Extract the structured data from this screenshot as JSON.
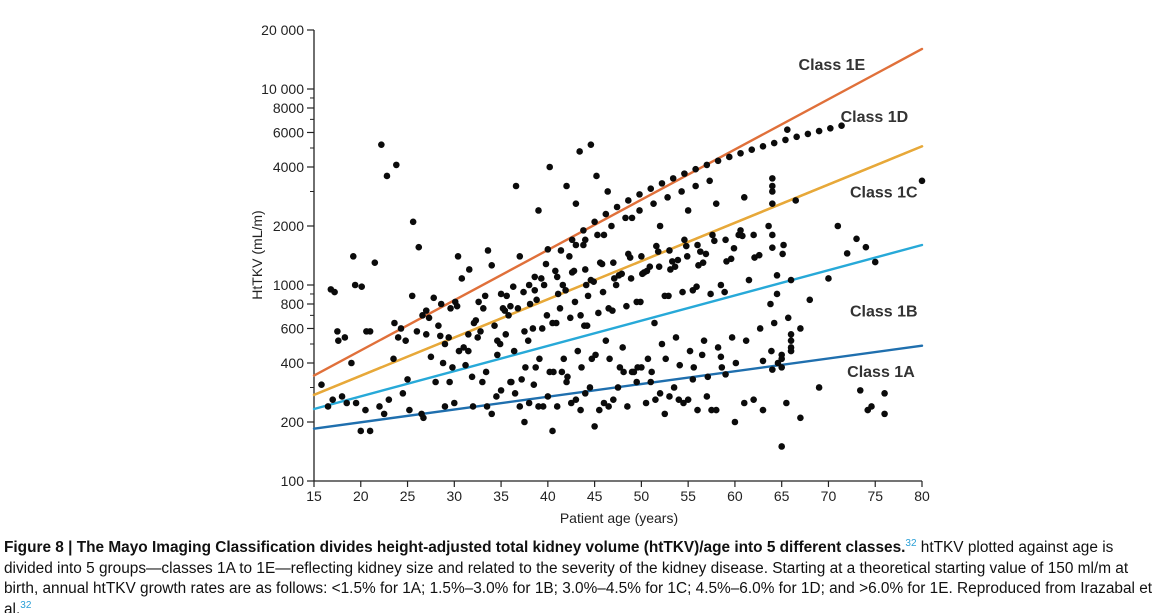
{
  "chart_data": {
    "type": "scatter",
    "title": "",
    "xlabel": "Patient age (years)",
    "ylabel": "HtTKV (mL/m)",
    "xlim": [
      15,
      80
    ],
    "ylim": [
      100,
      20000
    ],
    "yscale": "log",
    "grid": false,
    "xticks": [
      15,
      20,
      25,
      30,
      35,
      40,
      45,
      50,
      55,
      60,
      65,
      70,
      75,
      80
    ],
    "xtick_labels": [
      "15",
      "20",
      "25",
      "30",
      "35",
      "40",
      "45",
      "50",
      "55",
      "60",
      "65",
      "70",
      "75",
      "80"
    ],
    "yticks_major": [
      100,
      200,
      400,
      600,
      800,
      1000,
      2000,
      4000,
      6000,
      8000,
      10000,
      20000
    ],
    "ytick_labels": [
      "100",
      "200",
      "400",
      "600",
      "800",
      "1000",
      "2000",
      "4000",
      "6000",
      "8000",
      "10 000",
      "20 000"
    ],
    "yticks_minor": [
      300,
      500,
      700,
      900,
      3000,
      5000,
      7000,
      9000
    ],
    "lines": [
      {
        "label": "Class 1A",
        "color": "#1f6fae",
        "points": [
          [
            15,
            185
          ],
          [
            80,
            490
          ]
        ]
      },
      {
        "label": "Class 1B",
        "color": "#27a9d8",
        "points": [
          [
            15,
            233
          ],
          [
            80,
            1600
          ]
        ]
      },
      {
        "label": "Class 1C",
        "color": "#eab530",
        "points": [
          [
            15,
            275
          ],
          [
            80,
            5100
          ]
        ]
      },
      {
        "label": "Class 1D",
        "color": "#e7a83a",
        "points": [
          [
            15,
            275
          ],
          [
            80,
            5100
          ]
        ]
      },
      {
        "label": "Class 1E",
        "color": "#e0703a",
        "points": [
          [
            15,
            345
          ],
          [
            80,
            16000
          ]
        ]
      }
    ],
    "line_labels": [
      {
        "text": "Class 1E",
        "x": 66.8,
        "y": 12500
      },
      {
        "text": "Class 1D",
        "x": 71.3,
        "y": 6800
      },
      {
        "text": "Class 1C",
        "x": 72.3,
        "y": 2800
      },
      {
        "text": "Class 1B",
        "x": 72.3,
        "y": 690
      },
      {
        "text": "Class 1A",
        "x": 72.0,
        "y": 340
      }
    ],
    "points_x": [
      15.8,
      16.5,
      17.0,
      17.5,
      18.0,
      18.5,
      19.0,
      19.5,
      20.0,
      20.5,
      21.0,
      16.8,
      17.2,
      18.3,
      19.2,
      20.1,
      21.5,
      22.0,
      22.5,
      23.0,
      23.5,
      24.0,
      24.5,
      25.0,
      25.5,
      26.0,
      26.5,
      27.0,
      27.5,
      28.0,
      28.5,
      29.0,
      29.5,
      30.0,
      30.5,
      31.0,
      31.5,
      32.0,
      32.5,
      33.0,
      33.5,
      34.0,
      34.5,
      35.0,
      35.5,
      36.0,
      36.5,
      37.0,
      37.5,
      38.0,
      38.5,
      39.0,
      39.5,
      40.0,
      40.5,
      41.0,
      41.5,
      42.0,
      42.5,
      43.0,
      43.5,
      44.0,
      44.5,
      45.0,
      45.5,
      46.0,
      46.5,
      47.0,
      47.5,
      48.0,
      48.5,
      49.0,
      49.5,
      50.0,
      50.5,
      51.0,
      51.5,
      52.0,
      52.5,
      53.0,
      53.5,
      54.0,
      54.5,
      55.0,
      55.5,
      56.0,
      56.5,
      57.0,
      57.5,
      58.0,
      58.5,
      59.0,
      60.0,
      61.0,
      62.0,
      63.0,
      64.0,
      64.5,
      65.0,
      65.5,
      66.0,
      67.0,
      68.0,
      69.0,
      70.0,
      71.0,
      72.0,
      73.0,
      74.0,
      75.0,
      76.0,
      80.0,
      22.2,
      23.8,
      25.2,
      26.7,
      28.3,
      29.8,
      31.2,
      32.8,
      34.3,
      35.8,
      37.2,
      38.7,
      40.2,
      41.7,
      43.2,
      44.7,
      46.2,
      47.7,
      49.2,
      50.7,
      52.2,
      53.7,
      55.2,
      56.7,
      58.2,
      59.7,
      61.2,
      62.7,
      64.2,
      65.7,
      27.0,
      28.6,
      30.1,
      31.6,
      33.1,
      34.6,
      36.1,
      37.6,
      39.1,
      40.6,
      42.1,
      43.6,
      45.1,
      46.6,
      48.1,
      49.6,
      51.1,
      52.6,
      54.1,
      55.6,
      57.1,
      58.6,
      60.1,
      63.0,
      64.6,
      66.0,
      30.4,
      31.9,
      33.4,
      34.9,
      36.4,
      37.9,
      39.4,
      40.9,
      42.4,
      43.9,
      45.4,
      46.9,
      48.4,
      49.9,
      51.4,
      52.9,
      54.4,
      55.9,
      57.4,
      58.9,
      60.4,
      65.2,
      19.4,
      21.0,
      24.8,
      27.8,
      30.8,
      34.0,
      37.0,
      40.0,
      43.0,
      44.0,
      46.0,
      49.0,
      52.0,
      55.0,
      58.0,
      61.0,
      64.0,
      66.5,
      36.6,
      38.4,
      39.9,
      41.3,
      42.9,
      44.3,
      45.9,
      47.3,
      48.9,
      50.3,
      51.9,
      53.3,
      54.9,
      56.3,
      26.2,
      29.0,
      32.3,
      35.2,
      38.1,
      41.1,
      44.1,
      47.1,
      50.1,
      53.1,
      56.1,
      59.1,
      62.1,
      65.1,
      33.6,
      36.8,
      39.6,
      42.6,
      45.6,
      48.6,
      51.6,
      54.6,
      57.6,
      60.6,
      63.6,
      25.6,
      28.8,
      31.5,
      34.6,
      37.5,
      40.5,
      43.5,
      46.5,
      49.5,
      52.5,
      55.5,
      58.5,
      61.5,
      64.5,
      40.8,
      42.3,
      43.8,
      45.3,
      46.8,
      48.3,
      49.8,
      51.3,
      52.8,
      54.3,
      55.8,
      57.3,
      22.8,
      24.3,
      27.3,
      30.3,
      33.3,
      36.3,
      39.3,
      42.8,
      45.8,
      48.8,
      51.8,
      54.8,
      57.8,
      60.8,
      63.8,
      35.0,
      38.0,
      41.0,
      44.0,
      47.0,
      50.0,
      53.0,
      56.0,
      59.0,
      62.0,
      65.0,
      29.4,
      32.1,
      35.4,
      38.8,
      41.9,
      44.9,
      47.9,
      50.9,
      53.9,
      56.9,
      59.9,
      63.9,
      17.6,
      20.6,
      23.6,
      26.6,
      29.6,
      32.6,
      35.6,
      38.6,
      41.6,
      44.6,
      47.6,
      50.6,
      53.6,
      56.6,
      59.6,
      62.6,
      65.6,
      43.4,
      44.6,
      45.2,
      46.4,
      39.0,
      40.2,
      42.0,
      43.0,
      44.2,
      36.0,
      37.4,
      38.6,
      39.8,
      41.4,
      42.6,
      43.8,
      45.0,
      46.2,
      47.4,
      48.6,
      49.8,
      51.0,
      52.2,
      53.4,
      54.6,
      55.8,
      57.0,
      58.2,
      59.4,
      60.6,
      61.8,
      63.0,
      64.2,
      65.4,
      66.6,
      67.8,
      69.0,
      70.2,
      71.4,
      74.6,
      76.0,
      74.2,
      73.4,
      64.0,
      64.0,
      64.0,
      64.0,
      64.0,
      65.0,
      65.0,
      66.0,
      66.0,
      66.0,
      67.0
    ],
    "points_y": [
      310,
      240,
      260,
      580,
      270,
      250,
      400,
      250,
      180,
      230,
      180,
      950,
      920,
      540,
      1400,
      980,
      1300,
      240,
      220,
      260,
      420,
      540,
      280,
      330,
      880,
      580,
      220,
      560,
      430,
      320,
      550,
      240,
      320,
      250,
      460,
      480,
      560,
      240,
      540,
      320,
      240,
      220,
      270,
      290,
      560,
      320,
      280,
      240,
      200,
      250,
      310,
      240,
      240,
      270,
      180,
      240,
      360,
      320,
      250,
      260,
      230,
      280,
      300,
      190,
      230,
      250,
      240,
      260,
      300,
      480,
      240,
      360,
      320,
      380,
      250,
      320,
      260,
      280,
      220,
      270,
      300,
      260,
      250,
      260,
      330,
      230,
      440,
      270,
      230,
      230,
      430,
      350,
      200,
      250,
      260,
      230,
      370,
      900,
      150,
      250,
      1060,
      210,
      840,
      300,
      1080,
      2000,
      1450,
      1720,
      1560,
      1310,
      280,
      3400,
      5200,
      4100,
      230,
      210,
      620,
      380,
      390,
      580,
      620,
      700,
      330,
      380,
      360,
      420,
      460,
      420,
      520,
      380,
      360,
      420,
      500,
      540,
      460,
      520,
      480,
      540,
      520,
      600,
      640,
      680,
      740,
      800,
      820,
      1200,
      760,
      440,
      320,
      380,
      420,
      360,
      340,
      380,
      440,
      420,
      360,
      380,
      360,
      420,
      390,
      380,
      340,
      380,
      400,
      410,
      400,
      460,
      1400,
      340,
      360,
      500,
      460,
      520,
      600,
      640,
      680,
      620,
      720,
      740,
      780,
      820,
      640,
      880,
      920,
      980,
      900,
      920,
      1800,
      1600,
      1000,
      580,
      520,
      860,
      1080,
      1260,
      1400,
      1520,
      1600,
      1700,
      1800,
      2200,
      2000,
      2400,
      2600,
      2800,
      3000,
      2700,
      3200,
      600,
      700,
      760,
      820,
      880,
      920,
      1000,
      1080,
      1160,
      1240,
      1320,
      1400,
      1480,
      1560,
      500,
      660,
      760,
      800,
      900,
      1000,
      1080,
      1140,
      1200,
      1260,
      1320,
      1380,
      1440,
      1500,
      760,
      1000,
      1160,
      1300,
      1440,
      1580,
      1700,
      1800,
      1900,
      2000,
      2100,
      400,
      460,
      520,
      580,
      640,
      700,
      760,
      820,
      880,
      940,
      1000,
      1060,
      1120,
      1180,
      1400,
      1600,
      1800,
      2000,
      2200,
      2400,
      2600,
      2800,
      3000,
      3200,
      3400,
      3600,
      600,
      680,
      780,
      880,
      980,
      1080,
      1180,
      1280,
      1380,
      1480,
      1580,
      1680,
      1780,
      800,
      900,
      1000,
      1100,
      1200,
      1300,
      1400,
      1500,
      1600,
      1700,
      1800,
      440,
      540,
      640,
      740,
      840,
      940,
      1040,
      1140,
      1240,
      1340,
      1440,
      1540,
      460,
      520,
      580,
      640,
      700,
      760,
      820,
      880,
      940,
      1000,
      1060,
      1120,
      1180,
      1240,
      1300,
      1360,
      1420,
      6200,
      4800,
      5200,
      3600,
      3000,
      2400,
      4000,
      3200,
      2600,
      620,
      780,
      920,
      1100,
      1280,
      1500,
      1700,
      1900,
      2100,
      2300,
      2500,
      2700,
      2900,
      3100,
      3300,
      3500,
      3700,
      3900,
      4100,
      4300,
      4500,
      4700,
      4900,
      5100,
      5300,
      5500,
      5700,
      5900,
      6100,
      6300,
      6500,
      240,
      220,
      230,
      290,
      3500,
      3200,
      2600,
      1800,
      1550,
      380,
      420,
      480,
      520,
      560,
      600,
      640,
      680,
      700,
      720
    ]
  },
  "caption": {
    "figure_label": "Figure 8 | The Mayo Imaging Classification divides height-adjusted total kidney volume (htTKV)/age into 5 different classes.",
    "ref1": "32",
    "body": " htTKV plotted against age is divided into 5 groups—classes 1A to 1E—reflecting kidney size and related to the severity of the kidney disease. Starting at a theoretical starting value of 150 ml/m at birth, annual htTKV growth rates are as follows: <1.5% for 1A; 1.5%–3.0% for 1B; 3.0%–4.5% for 1C; 4.5%–6.0% for 1D; and >6.0% for 1E. Reproduced from Irazabal et al.",
    "ref2": "32"
  }
}
